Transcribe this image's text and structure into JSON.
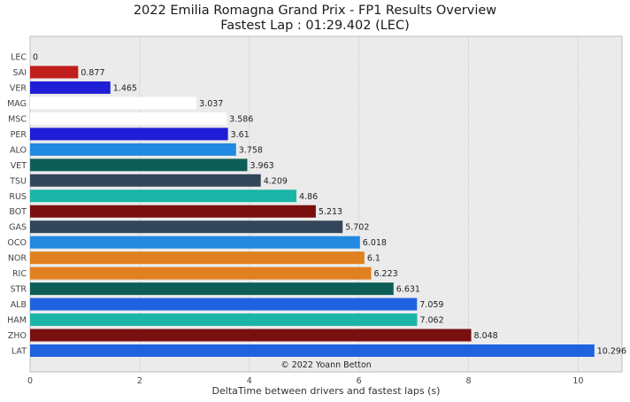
{
  "chart_data": {
    "type": "bar",
    "orientation": "horizontal",
    "title": "2022 Emilia Romagna Grand Prix - FP1 Results Overview",
    "subtitle": "Fastest Lap : 01:29.402 (LEC)",
    "xlabel": "DeltaTime between drivers and fastest laps (s)",
    "ylabel": "",
    "xlim": [
      0,
      10.8
    ],
    "xticks": [
      0,
      2,
      4,
      6,
      8,
      10
    ],
    "grid": true,
    "annotation": "© 2022 Yoann Betton",
    "bars": [
      {
        "driver": "LEC",
        "value": 0,
        "label": "0",
        "color": "#ed1c24"
      },
      {
        "driver": "SAI",
        "value": 0.877,
        "label": "0.877",
        "color": "#c01d1d"
      },
      {
        "driver": "VER",
        "value": 1.465,
        "label": "1.465",
        "color": "#1e1ed6"
      },
      {
        "driver": "MAG",
        "value": 3.037,
        "label": "3.037",
        "color": "#ffffff"
      },
      {
        "driver": "MSC",
        "value": 3.586,
        "label": "3.586",
        "color": "#ffffff"
      },
      {
        "driver": "PER",
        "value": 3.61,
        "label": "3.61",
        "color": "#1e1ed6"
      },
      {
        "driver": "ALO",
        "value": 3.758,
        "label": "3.758",
        "color": "#2189df"
      },
      {
        "driver": "VET",
        "value": 3.963,
        "label": "3.963",
        "color": "#0d5e57"
      },
      {
        "driver": "TSU",
        "value": 4.209,
        "label": "4.209",
        "color": "#334559"
      },
      {
        "driver": "RUS",
        "value": 4.86,
        "label": "4.86",
        "color": "#1ab5a6"
      },
      {
        "driver": "BOT",
        "value": 5.213,
        "label": "5.213",
        "color": "#7a0f10"
      },
      {
        "driver": "GAS",
        "value": 5.702,
        "label": "5.702",
        "color": "#334559"
      },
      {
        "driver": "OCO",
        "value": 6.018,
        "label": "6.018",
        "color": "#2189df"
      },
      {
        "driver": "NOR",
        "value": 6.1,
        "label": "6.1",
        "color": "#e0801f"
      },
      {
        "driver": "RIC",
        "value": 6.223,
        "label": "6.223",
        "color": "#e0801f"
      },
      {
        "driver": "STR",
        "value": 6.631,
        "label": "6.631",
        "color": "#0d5e57"
      },
      {
        "driver": "ALB",
        "value": 7.059,
        "label": "7.059",
        "color": "#1f62df"
      },
      {
        "driver": "HAM",
        "value": 7.062,
        "label": "7.062",
        "color": "#1ab5a6"
      },
      {
        "driver": "ZHO",
        "value": 8.048,
        "label": "8.048",
        "color": "#7a0f10"
      },
      {
        "driver": "LAT",
        "value": 10.296,
        "label": "10.296",
        "color": "#1f62df"
      }
    ]
  }
}
